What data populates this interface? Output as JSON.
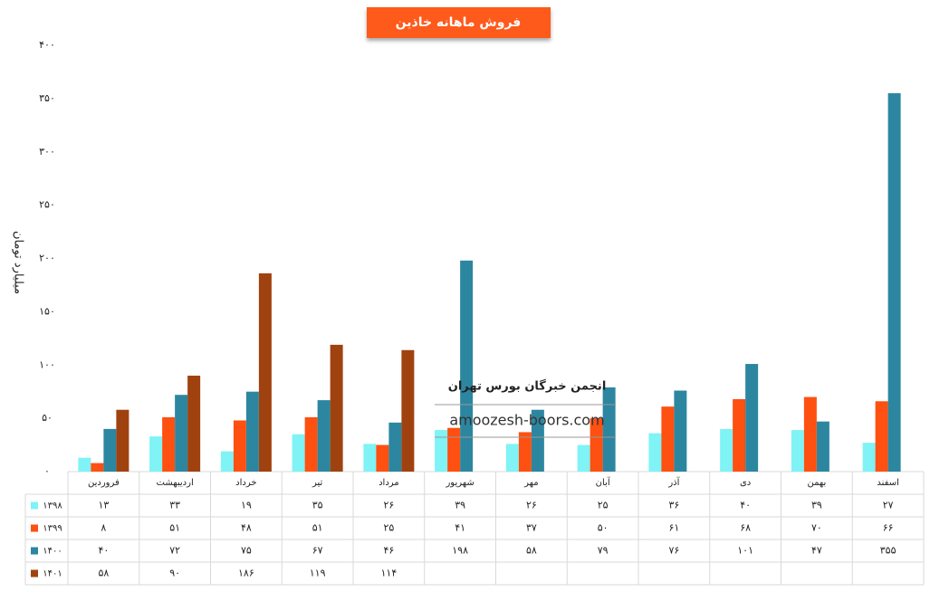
{
  "chart_data": {
    "type": "bar",
    "title": "فروش ماهانه خاذین",
    "y_label": "میلیارد تومان",
    "annotations": [
      "انجمن خبرگان بورس تهران",
      "amoozesh-boors.com"
    ],
    "categories": [
      "فروردین",
      "اردیبهشت",
      "خرداد",
      "تیر",
      "مرداد",
      "شهریور",
      "مهر",
      "آبان",
      "آذر",
      "دی",
      "بهمن",
      "اسفند"
    ],
    "series": [
      {
        "name": "۱۳۹۸",
        "color": "#7ff3f5",
        "values": [
          13,
          33,
          19,
          35,
          26,
          39,
          26,
          25,
          36,
          40,
          39,
          27
        ],
        "value_labels": [
          "۱۳",
          "۳۳",
          "۱۹",
          "۳۵",
          "۲۶",
          "۳۹",
          "۲۶",
          "۲۵",
          "۳۶",
          "۴۰",
          "۳۹",
          "۲۷"
        ]
      },
      {
        "name": "۱۳۹۹",
        "color": "#fe5011",
        "values": [
          8,
          51,
          48,
          51,
          25,
          41,
          37,
          50,
          61,
          68,
          70,
          66
        ],
        "value_labels": [
          "۸",
          "۵۱",
          "۴۸",
          "۵۱",
          "۲۵",
          "۴۱",
          "۳۷",
          "۵۰",
          "۶۱",
          "۶۸",
          "۷۰",
          "۶۶"
        ]
      },
      {
        "name": "۱۴۰۰",
        "color": "#2c86a0",
        "values": [
          40,
          72,
          75,
          67,
          46,
          198,
          58,
          79,
          76,
          101,
          47,
          355
        ],
        "value_labels": [
          "۴۰",
          "۷۲",
          "۷۵",
          "۶۷",
          "۴۶",
          "۱۹۸",
          "۵۸",
          "۷۹",
          "۷۶",
          "۱۰۱",
          "۴۷",
          "۳۵۵"
        ]
      },
      {
        "name": "۱۴۰۱",
        "color": "#a0420f",
        "values": [
          58,
          90,
          186,
          119,
          114,
          null,
          null,
          null,
          null,
          null,
          null,
          null
        ],
        "value_labels": [
          "۵۸",
          "۹۰",
          "۱۸۶",
          "۱۱۹",
          "۱۱۴",
          null,
          null,
          null,
          null,
          null,
          null,
          null
        ]
      }
    ],
    "ylim": [
      0,
      400
    ],
    "yticks": [
      {
        "value": 0,
        "label": "۰"
      },
      {
        "value": 50,
        "label": "۵۰"
      },
      {
        "value": 100,
        "label": "۱۰۰"
      },
      {
        "value": 150,
        "label": "۱۵۰"
      },
      {
        "value": 200,
        "label": "۲۰۰"
      },
      {
        "value": 250,
        "label": "۲۵۰"
      },
      {
        "value": 300,
        "label": "۳۰۰"
      },
      {
        "value": 350,
        "label": "۳۵۰"
      },
      {
        "value": 400,
        "label": "۴۰۰"
      }
    ]
  }
}
